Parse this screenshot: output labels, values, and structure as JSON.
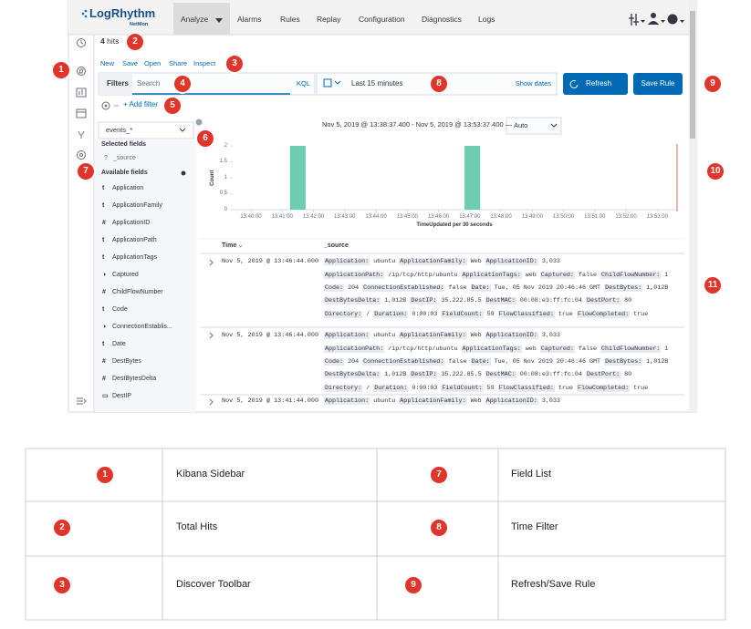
{
  "nav": {
    "logo": "LogRhythm",
    "logo_sub": "NetMon",
    "menu": [
      "Analyze",
      "Alarms",
      "Rules",
      "Replay",
      "Configuration",
      "Diagnostics",
      "Logs"
    ]
  },
  "hits": {
    "count": 4,
    "label": "hits"
  },
  "toolbar": [
    "New",
    "Save",
    "Open",
    "Share",
    "Inspect"
  ],
  "query": {
    "filters": "Filters",
    "placeholder": "Search",
    "kql": "KQL",
    "time": "Last 15 minutes",
    "show_dates": "Show dates",
    "refresh": "Refresh",
    "save_rule": "Save Rule"
  },
  "add_filter": "+ Add filter",
  "index_pattern": "events_*",
  "fields": {
    "selected_title": "Selected fields",
    "selected": [
      {
        "icon": "?",
        "name": "_source"
      }
    ],
    "available_title": "Available fields",
    "available": [
      {
        "icon": "t",
        "name": "Application"
      },
      {
        "icon": "t",
        "name": "ApplicationFamily"
      },
      {
        "icon": "#",
        "name": "ApplicationID"
      },
      {
        "icon": "t",
        "name": "ApplicationPath"
      },
      {
        "icon": "t",
        "name": "ApplicationTags"
      },
      {
        "icon": "◑",
        "name": "Captured"
      },
      {
        "icon": "#",
        "name": "ChildFlowNumber"
      },
      {
        "icon": "t",
        "name": "Code"
      },
      {
        "icon": "◑",
        "name": "ConnectionEstablis..."
      },
      {
        "icon": "t",
        "name": "Date"
      },
      {
        "icon": "#",
        "name": "DestBytes"
      },
      {
        "icon": "#",
        "name": "DestBytesDelta"
      },
      {
        "icon": "▭",
        "name": "DestIP"
      }
    ]
  },
  "histogram": {
    "type": "bar",
    "range": "Nov 5, 2019 @ 13:38:37.400 - Nov 5, 2019 @ 13:53:37.400 —",
    "interval": "Auto",
    "ylabel": "Count",
    "xlabel": "TimeUpdated per 30 seconds",
    "xlim": [
      "13:39:25",
      "13:53:38"
    ],
    "xticks": [
      "13:40:00",
      "13:41:00",
      "13:42:00",
      "13:43:00",
      "13:44:00",
      "13:45:00",
      "13:46:00",
      "13:47:00",
      "13:48:00",
      "13:49:00",
      "13:50:00",
      "13:51:00",
      "13:52:00",
      "13:53:00"
    ],
    "ylim": [
      0,
      2
    ],
    "yticks": [
      0,
      0.5,
      1,
      1.5,
      2
    ],
    "color": "#6dccb1",
    "bars": {
      "x_start": [
        "13:41:15",
        "13:46:50"
      ],
      "x_end": [
        "13:41:45",
        "13:47:20"
      ],
      "values": [
        2,
        2
      ]
    }
  },
  "documents": {
    "headers": [
      "Time",
      "_source"
    ],
    "rows": [
      {
        "time": "Nov 5, 2019 @ 13:46:44.000",
        "source": [
          [
            [
              "Application:",
              "ubuntu"
            ],
            [
              "ApplicationFamily:",
              "Web"
            ],
            [
              "ApplicationID:",
              "3,033"
            ]
          ],
          [
            [
              "ApplicationPath:",
              "/ip/tcp/http/ubuntu"
            ],
            [
              "ApplicationTags:",
              "web"
            ],
            [
              "Captured:",
              "false"
            ],
            [
              "ChildFlowNumber:",
              "1"
            ]
          ],
          [
            [
              "Code:",
              "204"
            ],
            [
              "ConnectionEstablished:",
              "false"
            ],
            [
              "Date:",
              "Tue, 05 Nov 2019 20:46:46 GMT"
            ],
            [
              "DestBytes:",
              "1,012B"
            ]
          ],
          [
            [
              "DestBytesDelta:",
              "1,012B"
            ],
            [
              "DestIP:",
              "35.222.85.5"
            ],
            [
              "DestMAC:",
              "00:08:e3:ff:fc:04"
            ],
            [
              "DestPort:",
              "80"
            ]
          ],
          [
            [
              "Directory:",
              "/"
            ],
            [
              "Duration:",
              "0:00:03"
            ],
            [
              "FieldCount:",
              "59"
            ],
            [
              "FlowClassified:",
              "true"
            ],
            [
              "FlowCompleted:",
              "true"
            ]
          ]
        ]
      },
      {
        "time": "Nov 5, 2019 @ 13:46:44.000",
        "source": [
          [
            [
              "Application:",
              "ubuntu"
            ],
            [
              "ApplicationFamily:",
              "Web"
            ],
            [
              "ApplicationID:",
              "3,033"
            ]
          ],
          [
            [
              "ApplicationPath:",
              "/ip/tcp/http/ubuntu"
            ],
            [
              "ApplicationTags:",
              "web"
            ],
            [
              "Captured:",
              "false"
            ],
            [
              "ChildFlowNumber:",
              "1"
            ]
          ],
          [
            [
              "Code:",
              "204"
            ],
            [
              "ConnectionEstablished:",
              "false"
            ],
            [
              "Date:",
              "Tue, 05 Nov 2019 20:46:46 GMT"
            ],
            [
              "DestBytes:",
              "1,012B"
            ]
          ],
          [
            [
              "DestBytesDelta:",
              "1,012B"
            ],
            [
              "DestIP:",
              "35.222.85.5"
            ],
            [
              "DestMAC:",
              "00:08:e3:ff:fc:04"
            ],
            [
              "DestPort:",
              "80"
            ]
          ],
          [
            [
              "Directory:",
              "/"
            ],
            [
              "Duration:",
              "0:00:03"
            ],
            [
              "FieldCount:",
              "59"
            ],
            [
              "FlowClassified:",
              "true"
            ],
            [
              "FlowCompleted:",
              "true"
            ]
          ]
        ]
      },
      {
        "time": "Nov 5, 2019 @ 13:41:44.000",
        "source": [
          [
            [
              "Application:",
              "ubuntu"
            ],
            [
              "ApplicationFamily:",
              "Web"
            ],
            [
              "ApplicationID:",
              "3,033"
            ]
          ]
        ]
      }
    ]
  },
  "callouts": [
    "1",
    "2",
    "3",
    "4",
    "5",
    "6",
    "7",
    "8",
    "9",
    "10",
    "11"
  ],
  "legend_table": {
    "rows": [
      [
        "1",
        "Kibana Sidebar",
        "7",
        "Field List"
      ],
      [
        "2",
        "Total Hits",
        "8",
        "Time Filter"
      ],
      [
        "3",
        "Discover Toolbar",
        "9",
        "Refresh/Save Rule"
      ]
    ]
  }
}
